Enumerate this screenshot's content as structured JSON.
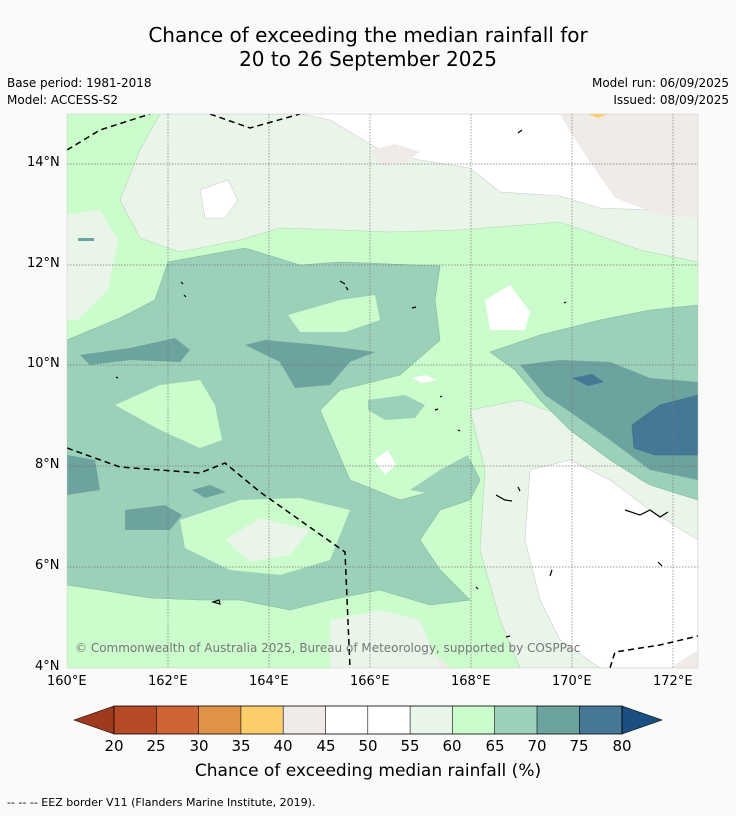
{
  "title_line1": "Chance of exceeding the median rainfall for",
  "title_line2": "20 to 26 September 2025",
  "base_period": "Base period: 1981-2018",
  "model": "Model: ACCESS-S2",
  "model_run": "Model run: 06/09/2025",
  "issued": "Issued: 08/09/2025",
  "copyright": "© Commonwealth of Australia 2025, Bureau of Meteorology, supported by COSPPac",
  "footer": "--  --  -- EEZ border V11 (Flanders Marine Institute, 2019).",
  "lat_ticks": [
    "14°N",
    "12°N",
    "10°N",
    "8°N",
    "6°N",
    "4°N"
  ],
  "lon_ticks": [
    "160°E",
    "162°E",
    "164°E",
    "166°E",
    "168°E",
    "170°E",
    "172°E"
  ],
  "colorbar": {
    "title": "Chance of exceeding median rainfall (%)",
    "ticks": [
      "20",
      "25",
      "30",
      "35",
      "40",
      "45",
      "50",
      "55",
      "60",
      "65",
      "70",
      "75",
      "80"
    ],
    "colors": [
      "#a0391d",
      "#b54a25",
      "#cf6434",
      "#e09246",
      "#fccd6a",
      "#f0ebe8",
      "#ffffff",
      "#ffffff",
      "#eaf5ea",
      "#cbfccb",
      "#9bd1b9",
      "#6ca39f",
      "#447896",
      "#1b4f84"
    ]
  }
}
